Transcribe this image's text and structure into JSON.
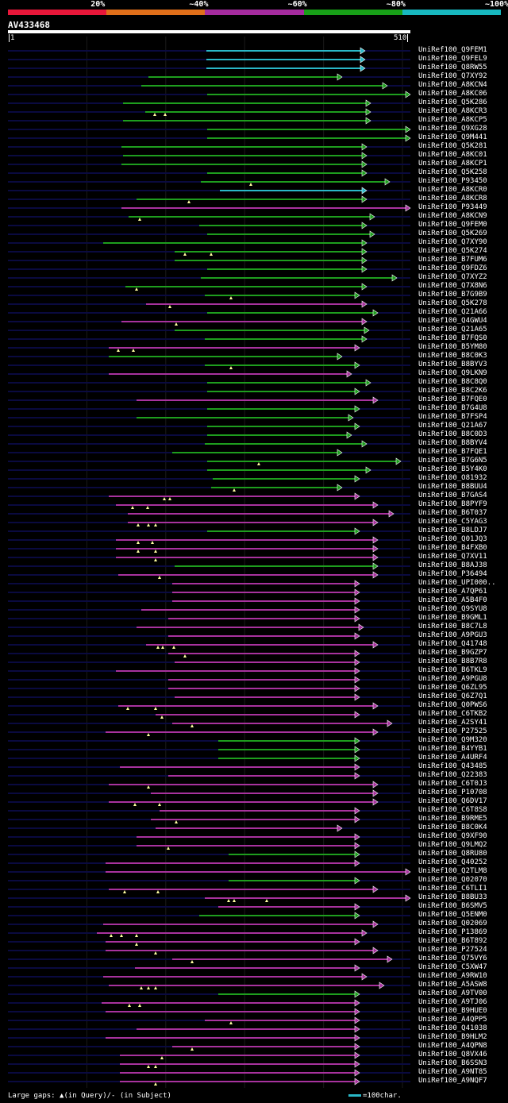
{
  "legend": [
    {
      "label": "20%",
      "color": "#e8173a"
    },
    {
      "label": "~40%",
      "color": "#e06f1a"
    },
    {
      "label": "~60%",
      "color": "#a52b9e"
    },
    {
      "label": "~80%",
      "color": "#18a018"
    },
    {
      "label": "~100%",
      "color": "#18b8c0"
    }
  ],
  "query": {
    "name": "AV433468",
    "start": "1",
    "end": "510",
    "length": 510
  },
  "colors": {
    "cyan": "#2ab8c8",
    "green": "#1e9e1e",
    "magenta": "#a8329e",
    "guide": "#0a0a40",
    "marker": "#ffffa0"
  },
  "footer": {
    "gaps_text": "Large gaps: ▲(in Query)/- (in Subject)",
    "scale_text": "=100char.",
    "scale_color": "#2ab8c8"
  },
  "hits": [
    {
      "label": "UniRef100_Q9FEM1",
      "color": "cyan",
      "start": 260,
      "end": 460,
      "markers": []
    },
    {
      "label": "UniRef100_Q9FEL9",
      "color": "cyan",
      "start": 260,
      "end": 460,
      "markers": []
    },
    {
      "label": "UniRef100_Q8RW55",
      "color": "cyan",
      "start": 260,
      "end": 460,
      "markers": []
    },
    {
      "label": "UniRef100_Q7XY92",
      "color": "green",
      "start": 187,
      "end": 431,
      "markers": []
    },
    {
      "label": "UniRef100_A8KCN4",
      "color": "green",
      "start": 178,
      "end": 488,
      "markers": []
    },
    {
      "label": "UniRef100_A8KC06",
      "color": "green",
      "start": 261,
      "end": 517,
      "markers": []
    },
    {
      "label": "UniRef100_Q5K286",
      "color": "green",
      "start": 155,
      "end": 467,
      "markers": []
    },
    {
      "label": "UniRef100_A8KCR3",
      "color": "green",
      "start": 183,
      "end": 467,
      "markers": [
        195,
        208
      ]
    },
    {
      "label": "UniRef100_A8KCP5",
      "color": "green",
      "start": 155,
      "end": 467,
      "markers": []
    },
    {
      "label": "UniRef100_Q9XG28",
      "color": "green",
      "start": 261,
      "end": 517,
      "markers": []
    },
    {
      "label": "UniRef100_Q9M441",
      "color": "green",
      "start": 261,
      "end": 517,
      "markers": []
    },
    {
      "label": "UniRef100_Q5K281",
      "color": "green",
      "start": 153,
      "end": 462,
      "markers": []
    },
    {
      "label": "UniRef100_A8KC01",
      "color": "green",
      "start": 155,
      "end": 462,
      "markers": []
    },
    {
      "label": "UniRef100_A8KCP1",
      "color": "green",
      "start": 153,
      "end": 462,
      "markers": []
    },
    {
      "label": "UniRef100_Q5K258",
      "color": "green",
      "start": 261,
      "end": 462,
      "markers": []
    },
    {
      "label": "UniRef100_P93450",
      "color": "green",
      "start": 253,
      "end": 491,
      "markers": [
        316
      ]
    },
    {
      "label": "UniRef100_A8KCR0",
      "color": "cyan",
      "start": 277,
      "end": 462,
      "markers": []
    },
    {
      "label": "UniRef100_A8KCR8",
      "color": "green",
      "start": 172,
      "end": 462,
      "markers": [
        238
      ]
    },
    {
      "label": "UniRef100_P93449",
      "color": "magenta",
      "start": 153,
      "end": 517,
      "markers": []
    },
    {
      "label": "UniRef100_A8KCN9",
      "color": "green",
      "start": 162,
      "end": 472,
      "markers": [
        176
      ]
    },
    {
      "label": "UniRef100_Q9FEM0",
      "color": "green",
      "start": 251,
      "end": 462,
      "markers": []
    },
    {
      "label": "UniRef100_Q5K269",
      "color": "green",
      "start": 261,
      "end": 472,
      "markers": []
    },
    {
      "label": "UniRef100_Q7XY90",
      "color": "green",
      "start": 130,
      "end": 462,
      "markers": []
    },
    {
      "label": "UniRef100_Q5K274",
      "color": "green",
      "start": 220,
      "end": 462,
      "markers": [
        233,
        266
      ]
    },
    {
      "label": "UniRef100_B7FUM6",
      "color": "green",
      "start": 220,
      "end": 462,
      "markers": []
    },
    {
      "label": "UniRef100_Q9FDZ6",
      "color": "green",
      "start": 261,
      "end": 462,
      "markers": []
    },
    {
      "label": "UniRef100_Q7XYZ2",
      "color": "green",
      "start": 253,
      "end": 500,
      "markers": []
    },
    {
      "label": "UniRef100_Q7X8N6",
      "color": "green",
      "start": 158,
      "end": 462,
      "markers": [
        172
      ]
    },
    {
      "label": "UniRef100_B7G9B9",
      "color": "green",
      "start": 258,
      "end": 453,
      "markers": [
        291
      ]
    },
    {
      "label": "UniRef100_Q5K278",
      "color": "magenta",
      "start": 184,
      "end": 462,
      "markers": [
        214
      ]
    },
    {
      "label": "UniRef100_Q21A66",
      "color": "green",
      "start": 261,
      "end": 476,
      "markers": []
    },
    {
      "label": "UniRef100_Q4GWU4",
      "color": "magenta",
      "start": 153,
      "end": 462,
      "markers": [
        222
      ]
    },
    {
      "label": "UniRef100_Q21A65",
      "color": "green",
      "start": 220,
      "end": 465,
      "markers": []
    },
    {
      "label": "UniRef100_B7FQS0",
      "color": "green",
      "start": 258,
      "end": 462,
      "markers": []
    },
    {
      "label": "UniRef100_B5YM80",
      "color": "magenta",
      "start": 137,
      "end": 453,
      "markers": [
        149,
        168
      ]
    },
    {
      "label": "UniRef100_B8C0K3",
      "color": "green",
      "start": 137,
      "end": 431,
      "markers": []
    },
    {
      "label": "UniRef100_B8BYV3",
      "color": "green",
      "start": 258,
      "end": 453,
      "markers": [
        291
      ]
    },
    {
      "label": "UniRef100_Q9LKN9",
      "color": "magenta",
      "start": 137,
      "end": 443,
      "markers": []
    },
    {
      "label": "UniRef100_B8C8Q0",
      "color": "green",
      "start": 261,
      "end": 467,
      "markers": []
    },
    {
      "label": "UniRef100_B8C2K6",
      "color": "green",
      "start": 261,
      "end": 453,
      "markers": []
    },
    {
      "label": "UniRef100_B7FQE0",
      "color": "magenta",
      "start": 172,
      "end": 476,
      "markers": []
    },
    {
      "label": "UniRef100_B7G4U8",
      "color": "green",
      "start": 261,
      "end": 453,
      "markers": []
    },
    {
      "label": "UniRef100_B7FSP4",
      "color": "green",
      "start": 172,
      "end": 445,
      "markers": []
    },
    {
      "label": "UniRef100_Q21A67",
      "color": "green",
      "start": 261,
      "end": 453,
      "markers": []
    },
    {
      "label": "UniRef100_B8C0D3",
      "color": "green",
      "start": 261,
      "end": 443,
      "markers": []
    },
    {
      "label": "UniRef100_B8BYV4",
      "color": "green",
      "start": 258,
      "end": 462,
      "markers": []
    },
    {
      "label": "UniRef100_B7FQE1",
      "color": "green",
      "start": 217,
      "end": 431,
      "markers": []
    },
    {
      "label": "UniRef100_B7G6N5",
      "color": "green",
      "start": 261,
      "end": 505,
      "markers": [
        326
      ]
    },
    {
      "label": "UniRef100_B5Y4K0",
      "color": "green",
      "start": 261,
      "end": 467,
      "markers": []
    },
    {
      "label": "UniRef100_O81932",
      "color": "green",
      "start": 268,
      "end": 453,
      "markers": []
    },
    {
      "label": "UniRef100_B8BUU4",
      "color": "green",
      "start": 266,
      "end": 431,
      "markers": [
        295
      ]
    },
    {
      "label": "UniRef100_B7GAS4",
      "color": "magenta",
      "start": 137,
      "end": 453,
      "markers": [
        207,
        214
      ]
    },
    {
      "label": "UniRef100_B8PYF9",
      "color": "magenta",
      "start": 146,
      "end": 476,
      "markers": [
        167,
        186
      ]
    },
    {
      "label": "UniRef100_B6T037",
      "color": "magenta",
      "start": 161,
      "end": 496,
      "markers": []
    },
    {
      "label": "UniRef100_C5YAG3",
      "color": "magenta",
      "start": 161,
      "end": 476,
      "markers": [
        174,
        187,
        196
      ]
    },
    {
      "label": "UniRef100_B8LDJ7",
      "color": "green",
      "start": 261,
      "end": 453,
      "markers": []
    },
    {
      "label": "UniRef100_Q01JQ3",
      "color": "magenta",
      "start": 146,
      "end": 476,
      "markers": [
        174,
        192
      ]
    },
    {
      "label": "UniRef100_B4FXB0",
      "color": "magenta",
      "start": 146,
      "end": 476,
      "markers": [
        174,
        196
      ]
    },
    {
      "label": "UniRef100_Q7XV11",
      "color": "magenta",
      "start": 146,
      "end": 476,
      "markers": [
        196
      ]
    },
    {
      "label": "UniRef100_B8AJ38",
      "color": "green",
      "start": 220,
      "end": 476,
      "markers": []
    },
    {
      "label": "UniRef100_P36494",
      "color": "magenta",
      "start": 149,
      "end": 476,
      "markers": [
        201
      ]
    },
    {
      "label": "UniRef100_UPI000..",
      "color": "magenta",
      "start": 217,
      "end": 453,
      "markers": []
    },
    {
      "label": "UniRef100_A7QP61",
      "color": "magenta",
      "start": 217,
      "end": 453,
      "markers": []
    },
    {
      "label": "UniRef100_A5B4F0",
      "color": "magenta",
      "start": 217,
      "end": 453,
      "markers": []
    },
    {
      "label": "UniRef100_Q9SYU8",
      "color": "magenta",
      "start": 178,
      "end": 453,
      "markers": []
    },
    {
      "label": "UniRef100_B9GML1",
      "color": "magenta",
      "start": 212,
      "end": 453,
      "markers": []
    },
    {
      "label": "UniRef100_B8C7L8",
      "color": "magenta",
      "start": 172,
      "end": 458,
      "markers": []
    },
    {
      "label": "UniRef100_A9PGU3",
      "color": "magenta",
      "start": 212,
      "end": 453,
      "markers": []
    },
    {
      "label": "UniRef100_Q41748",
      "color": "magenta",
      "start": 184,
      "end": 476,
      "markers": [
        199,
        205,
        219
      ]
    },
    {
      "label": "UniRef100_B9GZP7",
      "color": "magenta",
      "start": 212,
      "end": 453,
      "markers": [
        233
      ]
    },
    {
      "label": "UniRef100_B8B7R8",
      "color": "magenta",
      "start": 220,
      "end": 453,
      "markers": []
    },
    {
      "label": "UniRef100_B6TKL9",
      "color": "magenta",
      "start": 146,
      "end": 453,
      "markers": []
    },
    {
      "label": "UniRef100_A9PGU8",
      "color": "magenta",
      "start": 212,
      "end": 453,
      "markers": []
    },
    {
      "label": "UniRef100_Q6ZL95",
      "color": "magenta",
      "start": 212,
      "end": 453,
      "markers": []
    },
    {
      "label": "UniRef100_Q6Z7Q1",
      "color": "magenta",
      "start": 220,
      "end": 453,
      "markers": []
    },
    {
      "label": "UniRef100_Q0PWS6",
      "color": "magenta",
      "start": 149,
      "end": 476,
      "markers": [
        161,
        196
      ]
    },
    {
      "label": "UniRef100_C6TKB2",
      "color": "magenta",
      "start": 196,
      "end": 453,
      "markers": [
        204
      ]
    },
    {
      "label": "UniRef100_A2SY41",
      "color": "magenta",
      "start": 217,
      "end": 494,
      "markers": [
        242
      ]
    },
    {
      "label": "UniRef100_P27525",
      "color": "magenta",
      "start": 133,
      "end": 476,
      "markers": [
        187
      ]
    },
    {
      "label": "UniRef100_Q9M320",
      "color": "green",
      "start": 275,
      "end": 453,
      "markers": []
    },
    {
      "label": "UniRef100_B4YYB1",
      "color": "green",
      "start": 275,
      "end": 453,
      "markers": []
    },
    {
      "label": "UniRef100_A4URF4",
      "color": "green",
      "start": 275,
      "end": 453,
      "markers": []
    },
    {
      "label": "UniRef100_Q43485",
      "color": "magenta",
      "start": 151,
      "end": 453,
      "markers": []
    },
    {
      "label": "UniRef100_Q22383",
      "color": "magenta",
      "start": 212,
      "end": 453,
      "markers": []
    },
    {
      "label": "UniRef100_C6T0J3",
      "color": "magenta",
      "start": 137,
      "end": 476,
      "markers": [
        187
      ]
    },
    {
      "label": "UniRef100_P10708",
      "color": "magenta",
      "start": 190,
      "end": 476,
      "markers": []
    },
    {
      "label": "UniRef100_Q6DV17",
      "color": "magenta",
      "start": 137,
      "end": 476,
      "markers": [
        170,
        201
      ]
    },
    {
      "label": "UniRef100_C6T8S8",
      "color": "magenta",
      "start": 201,
      "end": 453,
      "markers": []
    },
    {
      "label": "UniRef100_B9RME5",
      "color": "magenta",
      "start": 190,
      "end": 453,
      "markers": [
        222
      ]
    },
    {
      "label": "UniRef100_B8C0K4",
      "color": "magenta",
      "start": 196,
      "end": 431,
      "markers": []
    },
    {
      "label": "UniRef100_Q9XF90",
      "color": "magenta",
      "start": 172,
      "end": 453,
      "markers": []
    },
    {
      "label": "UniRef100_Q9LMQ2",
      "color": "magenta",
      "start": 172,
      "end": 453,
      "markers": [
        212
      ]
    },
    {
      "label": "UniRef100_Q8RU80",
      "color": "green",
      "start": 288,
      "end": 453,
      "markers": []
    },
    {
      "label": "UniRef100_Q40252",
      "color": "magenta",
      "start": 133,
      "end": 453,
      "markers": []
    },
    {
      "label": "UniRef100_Q2TLM8",
      "color": "magenta",
      "start": 133,
      "end": 517,
      "markers": []
    },
    {
      "label": "UniRef100_Q02070",
      "color": "green",
      "start": 288,
      "end": 453,
      "markers": []
    },
    {
      "label": "UniRef100_C6TLI1",
      "color": "magenta",
      "start": 137,
      "end": 476,
      "markers": [
        157,
        199
      ]
    },
    {
      "label": "UniRef100_B8BU33",
      "color": "magenta",
      "start": 258,
      "end": 517,
      "markers": [
        288,
        295,
        336
      ]
    },
    {
      "label": "UniRef100_B6SMV5",
      "color": "magenta",
      "start": 275,
      "end": 453,
      "markers": []
    },
    {
      "label": "UniRef100_Q5ENM0",
      "color": "green",
      "start": 251,
      "end": 453,
      "markers": []
    },
    {
      "label": "UniRef100_Q02069",
      "color": "magenta",
      "start": 130,
      "end": 476,
      "markers": []
    },
    {
      "label": "UniRef100_P13869",
      "color": "magenta",
      "start": 122,
      "end": 462,
      "markers": [
        140,
        153,
        172
      ]
    },
    {
      "label": "UniRef100_B6T892",
      "color": "magenta",
      "start": 133,
      "end": 453,
      "markers": [
        172
      ]
    },
    {
      "label": "UniRef100_P27524",
      "color": "magenta",
      "start": 133,
      "end": 476,
      "markers": [
        196
      ]
    },
    {
      "label": "UniRef100_Q75VY6",
      "color": "magenta",
      "start": 217,
      "end": 494,
      "markers": [
        242
      ]
    },
    {
      "label": "UniRef100_C5XW47",
      "color": "magenta",
      "start": 170,
      "end": 453,
      "markers": []
    },
    {
      "label": "UniRef100_A9RW10",
      "color": "magenta",
      "start": 130,
      "end": 462,
      "markers": []
    },
    {
      "label": "UniRef100_A5ASW8",
      "color": "magenta",
      "start": 137,
      "end": 484,
      "markers": [
        178,
        187,
        196
      ]
    },
    {
      "label": "UniRef100_A9TV00",
      "color": "green",
      "start": 275,
      "end": 453,
      "markers": []
    },
    {
      "label": "UniRef100_A9TJ06",
      "color": "magenta",
      "start": 128,
      "end": 453,
      "markers": [
        163,
        176
      ]
    },
    {
      "label": "UniRef100_B9HUE0",
      "color": "magenta",
      "start": 133,
      "end": 453,
      "markers": []
    },
    {
      "label": "UniRef100_A4QPP5",
      "color": "magenta",
      "start": 258,
      "end": 453,
      "markers": [
        291
      ]
    },
    {
      "label": "UniRef100_Q41038",
      "color": "magenta",
      "start": 172,
      "end": 453,
      "markers": []
    },
    {
      "label": "UniRef100_B9HLM2",
      "color": "magenta",
      "start": 133,
      "end": 453,
      "markers": []
    },
    {
      "label": "UniRef100_A4QPN8",
      "color": "magenta",
      "start": 217,
      "end": 453,
      "markers": [
        242
      ]
    },
    {
      "label": "UniRef100_Q8VX46",
      "color": "magenta",
      "start": 151,
      "end": 453,
      "markers": [
        204
      ]
    },
    {
      "label": "UniRef100_B6SSN3",
      "color": "magenta",
      "start": 151,
      "end": 453,
      "markers": [
        187,
        196
      ]
    },
    {
      "label": "UniRef100_A9NT85",
      "color": "magenta",
      "start": 151,
      "end": 453,
      "markers": []
    },
    {
      "label": "UniRef100_A9NQF7",
      "color": "magenta",
      "start": 151,
      "end": 453,
      "markers": [
        196
      ]
    }
  ]
}
